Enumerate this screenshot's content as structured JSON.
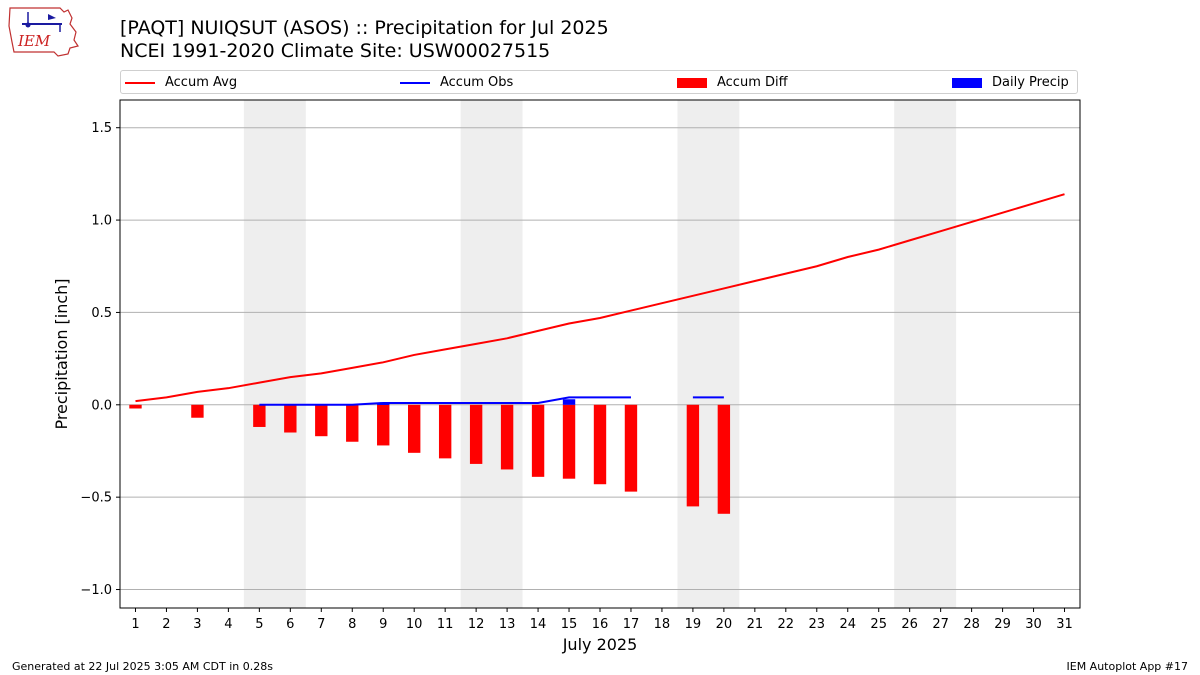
{
  "header": {
    "title_line1": "[PAQT] NUIQSUT (ASOS) :: Precipitation for Jul 2025",
    "title_line2": "NCEI 1991-2020 Climate Site: USW00027515"
  },
  "logo": {
    "text": "IEM"
  },
  "footer": {
    "generated": "Generated at 22 Jul 2025 3:05 AM CDT in 0.28s",
    "app": "IEM Autoplot App #17"
  },
  "colors": {
    "avg": "#ff0000",
    "obs": "#0000ff",
    "diff": "#ff0000",
    "daily": "#0000ff",
    "weekend": "#eeeeee",
    "grid": "#b0b0b0"
  },
  "chart_data": {
    "type": "bar",
    "xlabel": "July 2025",
    "ylabel": "Precipitation [inch]",
    "ylim": [
      -1.1,
      1.65
    ],
    "xlim": [
      0.5,
      31.5
    ],
    "yticks": [
      -1.0,
      -0.5,
      0.0,
      0.5,
      1.0,
      1.5
    ],
    "ytick_labels": [
      "−1.0",
      "−0.5",
      "0.0",
      "0.5",
      "1.0",
      "1.5"
    ],
    "days": [
      1,
      2,
      3,
      4,
      5,
      6,
      7,
      8,
      9,
      10,
      11,
      12,
      13,
      14,
      15,
      16,
      17,
      18,
      19,
      20,
      21,
      22,
      23,
      24,
      25,
      26,
      27,
      28,
      29,
      30,
      31
    ],
    "grid": "horizontal",
    "legend_position": "top",
    "weekend_spans": [
      [
        5,
        6
      ],
      [
        12,
        13
      ],
      [
        19,
        20
      ],
      [
        26,
        27
      ]
    ],
    "legend": [
      {
        "key": "avg",
        "label": "Accum Avg",
        "kind": "line"
      },
      {
        "key": "obs",
        "label": "Accum Obs",
        "kind": "line"
      },
      {
        "key": "diff",
        "label": "Accum Diff",
        "kind": "bar"
      },
      {
        "key": "daily",
        "label": "Daily Precip",
        "kind": "bar"
      }
    ],
    "accum_avg": [
      0.02,
      0.04,
      0.07,
      0.09,
      0.12,
      0.15,
      0.17,
      0.2,
      0.23,
      0.27,
      0.3,
      0.33,
      0.36,
      0.4,
      0.44,
      0.47,
      0.51,
      0.55,
      0.59,
      0.63,
      0.67,
      0.71,
      0.75,
      0.8,
      0.84,
      0.89,
      0.94,
      0.99,
      1.04,
      1.09,
      1.14
    ],
    "accum_obs_segments": [
      {
        "days": [
          5,
          6,
          7,
          8,
          9,
          10,
          11,
          12,
          13,
          14,
          15,
          16,
          17
        ],
        "values": [
          0.0,
          0.0,
          0.0,
          0.0,
          0.01,
          0.01,
          0.01,
          0.01,
          0.01,
          0.01,
          0.04,
          0.04,
          0.04
        ]
      },
      {
        "days": [
          19,
          20
        ],
        "values": [
          0.04,
          0.04
        ]
      }
    ],
    "accum_diff": [
      {
        "day": 1,
        "value": -0.02
      },
      {
        "day": 3,
        "value": -0.07
      },
      {
        "day": 5,
        "value": -0.12
      },
      {
        "day": 6,
        "value": -0.15
      },
      {
        "day": 7,
        "value": -0.17
      },
      {
        "day": 8,
        "value": -0.2
      },
      {
        "day": 9,
        "value": -0.22
      },
      {
        "day": 10,
        "value": -0.26
      },
      {
        "day": 11,
        "value": -0.29
      },
      {
        "day": 12,
        "value": -0.32
      },
      {
        "day": 13,
        "value": -0.35
      },
      {
        "day": 14,
        "value": -0.39
      },
      {
        "day": 15,
        "value": -0.4
      },
      {
        "day": 16,
        "value": -0.43
      },
      {
        "day": 17,
        "value": -0.47
      },
      {
        "day": 19,
        "value": -0.55
      },
      {
        "day": 20,
        "value": -0.59
      }
    ],
    "daily_precip": [
      {
        "day": 9,
        "value": 0.01
      },
      {
        "day": 15,
        "value": 0.03
      }
    ]
  }
}
